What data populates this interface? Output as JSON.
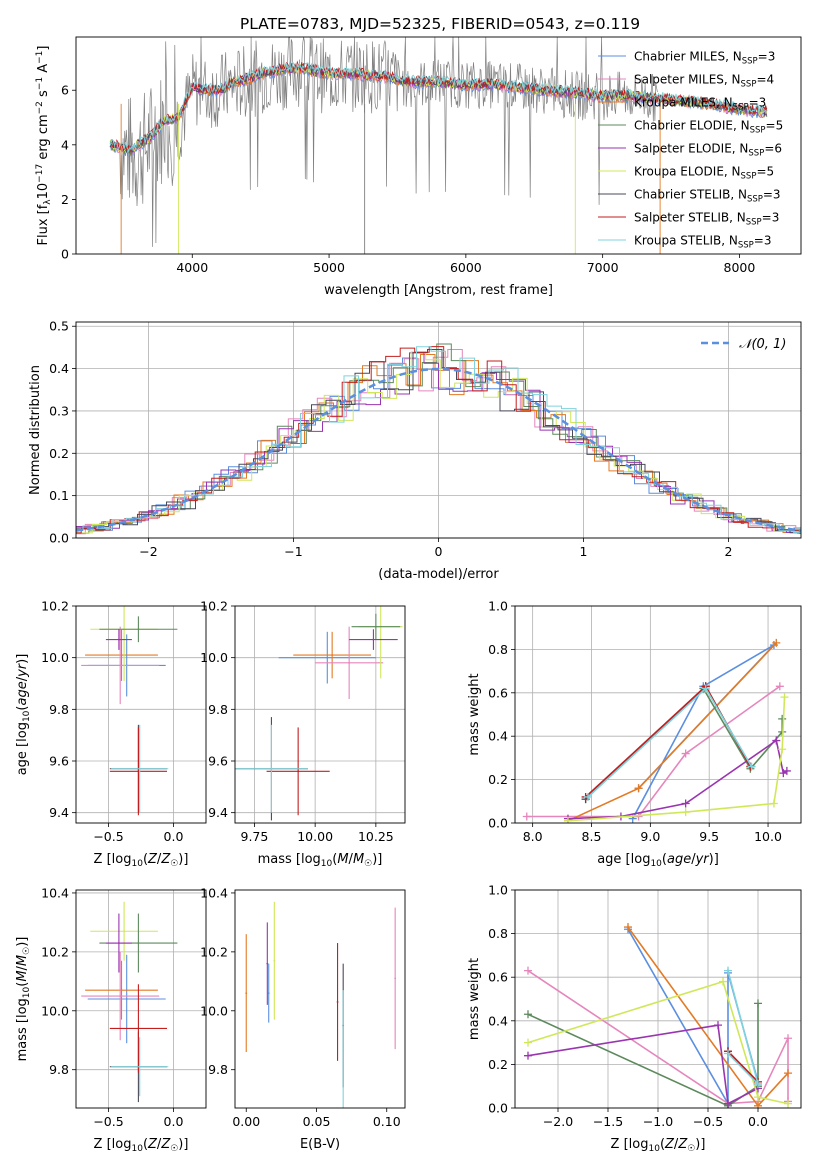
{
  "figure": {
    "title": "PLATE=0783, MJD=52325, FIBERID=0543, z=0.119"
  },
  "chart_data": [
    {
      "id": "spectrum",
      "type": "line",
      "xlabel": "wavelength [Angstrom, rest frame]",
      "ylabel": "Flux [f_λ 10^-17 erg cm^-2 s^-1 A^-1]",
      "xlim": [
        3150,
        8450
      ],
      "ylim": [
        0,
        7.95
      ],
      "xticks": [
        4000,
        5000,
        6000,
        7000,
        8000
      ],
      "yticks": [
        0,
        2,
        4,
        6
      ],
      "grid": false,
      "legend": "top-right",
      "observed": {
        "color": "#808080",
        "x": [
          3470,
          3600,
          3700,
          3800,
          3900,
          4000,
          4100,
          4200,
          4300,
          4400,
          4500,
          4600,
          4700,
          4800,
          4900,
          5000,
          5200,
          5400,
          5600,
          5800,
          6000,
          6200,
          6400,
          6600,
          6800,
          7000,
          7200,
          7400
        ],
        "y": [
          3.9,
          3.6,
          4.2,
          4.8,
          4.6,
          6.0,
          5.9,
          6.0,
          6.2,
          6.3,
          6.5,
          6.6,
          6.7,
          6.8,
          6.6,
          6.5,
          6.6,
          6.5,
          6.2,
          6.3,
          6.2,
          6.2,
          6.1,
          6.0,
          5.8,
          5.8,
          5.8,
          5.7
        ]
      },
      "model_x": [
        3400,
        3550,
        3700,
        3800,
        3900,
        4000,
        4100,
        4200,
        4300,
        4400,
        4500,
        4600,
        4700,
        4800,
        4900,
        5000,
        5200,
        5400,
        5600,
        5800,
        6000,
        6200,
        6400,
        6600,
        6800,
        7000,
        7200,
        7400,
        7600,
        7800,
        8000,
        8200
      ],
      "model_y": [
        4.0,
        3.8,
        4.3,
        4.9,
        5.0,
        6.1,
        6.0,
        6.0,
        6.3,
        6.4,
        6.6,
        6.7,
        6.8,
        6.8,
        6.7,
        6.6,
        6.6,
        6.5,
        6.3,
        6.3,
        6.2,
        6.2,
        6.1,
        6.0,
        5.9,
        5.8,
        5.8,
        5.7,
        5.6,
        5.5,
        5.3,
        5.2
      ],
      "series": [
        {
          "name": "Chabrier MILES, N_SSP=3",
          "label_main": "Chabrier MILES, N",
          "label_sub": "SSP",
          "label_end": "=3",
          "color": "#5b8fe0"
        },
        {
          "name": "Salpeter MILES, N_SSP=4",
          "label_main": "Salpeter MILES, N",
          "label_sub": "SSP",
          "label_end": "=4",
          "color": "#e586bc"
        },
        {
          "name": "Kroupa MILES, N_SSP=3",
          "label_main": "Kroupa MILES, N",
          "label_sub": "SSP",
          "label_end": "=3",
          "color": "#e37a24"
        },
        {
          "name": "Chabrier ELODIE, N_SSP=5",
          "label_main": "Chabrier ELODIE, N",
          "label_sub": "SSP",
          "label_end": "=5",
          "color": "#5d8a5d"
        },
        {
          "name": "Salpeter ELODIE, N_SSP=6",
          "label_main": "Salpeter ELODIE, N",
          "label_sub": "SSP",
          "label_end": "=6",
          "color": "#9a35b0"
        },
        {
          "name": "Kroupa ELODIE, N_SSP=5",
          "label_main": "Kroupa ELODIE, N",
          "label_sub": "SSP",
          "label_end": "=5",
          "color": "#cfe85a"
        },
        {
          "name": "Chabrier STELIB, N_SSP=3",
          "label_main": "Chabrier STELIB, N",
          "label_sub": "SSP",
          "label_end": "=3",
          "color": "#4a4a5a"
        },
        {
          "name": "Salpeter STELIB, N_SSP=3",
          "label_main": "Salpeter STELIB, N",
          "label_sub": "SSP",
          "label_end": "=3",
          "color": "#c41e1e"
        },
        {
          "name": "Kroupa STELIB, N_SSP=3",
          "label_main": "Kroupa STELIB, N",
          "label_sub": "SSP",
          "label_end": "=3",
          "color": "#7ed3dc"
        }
      ]
    },
    {
      "id": "residuals",
      "type": "line",
      "xlabel": "(data-model)/error",
      "ylabel": "Normed distribution",
      "xlim": [
        -2.5,
        2.5
      ],
      "ylim": [
        0,
        0.51
      ],
      "xticks": [
        -2,
        -1,
        0,
        1,
        2
      ],
      "xticklabels": [
        "−2",
        "−1",
        "0",
        "1",
        "2"
      ],
      "yticks": [
        0,
        0.1,
        0.2,
        0.3,
        0.4,
        0.5
      ],
      "yticklabels": [
        "0.0",
        "0.1",
        "0.2",
        "0.3",
        "0.4",
        "0.5"
      ],
      "grid": true,
      "legend": "top-right",
      "normal_curve": {
        "name": "N(0,1)",
        "label": "𝒩(0, 1)",
        "color": "#5b8fe0"
      }
    },
    {
      "id": "age-vs-Z",
      "type": "scatter",
      "xlabel": "Z [log10(Z/Z☉)]",
      "ylabel": "age [log10(age/yr)]",
      "xlim": [
        -0.75,
        0.25
      ],
      "ylim": [
        9.36,
        10.2
      ],
      "xticks": [
        -0.5,
        0.0
      ],
      "xticklabels": [
        "−0.5",
        "0.0"
      ],
      "yticks": [
        9.4,
        9.6,
        9.8,
        10.0,
        10.2
      ],
      "yticklabels": [
        "9.4",
        "9.6",
        "9.8",
        "10.0",
        "10.2"
      ],
      "grid": true,
      "points": [
        {
          "x": -0.36,
          "y": 9.97,
          "xerr": 0.3,
          "yerr": 0.12,
          "color": "#5b8fe0"
        },
        {
          "x": -0.4,
          "y": 10.01,
          "xerr": 0.28,
          "yerr": 0.1,
          "color": "#e37a24"
        },
        {
          "x": -0.41,
          "y": 9.97,
          "xerr": 0.3,
          "yerr": 0.15,
          "color": "#e586bc"
        },
        {
          "x": -0.38,
          "y": 10.11,
          "xerr": 0.26,
          "yerr": 0.2,
          "color": "#cfe85a"
        },
        {
          "x": -0.27,
          "y": 10.11,
          "xerr": 0.3,
          "yerr": 0.05,
          "color": "#5d8a5d"
        },
        {
          "x": -0.42,
          "y": 10.07,
          "xerr": 0.1,
          "yerr": 0.04,
          "color": "#9a35b0"
        },
        {
          "x": -0.27,
          "y": 9.57,
          "xerr": 0.22,
          "yerr": 0.17,
          "color": "#4a4a5a"
        },
        {
          "x": -0.27,
          "y": 9.56,
          "xerr": 0.22,
          "yerr": 0.17,
          "color": "#c41e1e"
        },
        {
          "x": -0.26,
          "y": 9.57,
          "xerr": 0.22,
          "yerr": 0.17,
          "color": "#7ed3dc"
        }
      ]
    },
    {
      "id": "age-vs-mass",
      "type": "scatter",
      "xlabel": "mass [log10(M/M☉)]",
      "ylabel": "",
      "xlim": [
        9.67,
        10.37
      ],
      "ylim": [
        9.36,
        10.2
      ],
      "xticks": [
        9.75,
        10.0,
        10.25
      ],
      "xticklabels": [
        "9.75",
        "10.00",
        "10.25"
      ],
      "yticks": [
        9.4,
        9.6,
        9.8,
        10.0,
        10.2
      ],
      "yticklabels": [
        "9.4",
        "9.6",
        "9.8",
        "10.0",
        "10.2"
      ],
      "grid": true,
      "points": [
        {
          "x": 10.05,
          "y": 10.0,
          "xerr": 0.2,
          "yerr": 0.1,
          "color": "#5b8fe0"
        },
        {
          "x": 10.07,
          "y": 10.01,
          "xerr": 0.16,
          "yerr": 0.09,
          "color": "#e37a24"
        },
        {
          "x": 10.14,
          "y": 9.98,
          "xerr": 0.14,
          "yerr": 0.14,
          "color": "#e586bc"
        },
        {
          "x": 10.27,
          "y": 10.12,
          "xerr": 0.09,
          "yerr": 0.2,
          "color": "#cfe85a"
        },
        {
          "x": 10.25,
          "y": 10.12,
          "xerr": 0.1,
          "yerr": 0.05,
          "color": "#5d8a5d"
        },
        {
          "x": 10.24,
          "y": 10.07,
          "xerr": 0.1,
          "yerr": 0.04,
          "color": "#9a35b0"
        },
        {
          "x": 9.82,
          "y": 9.57,
          "xerr": 0.15,
          "yerr": 0.2,
          "color": "#4a4a5a"
        },
        {
          "x": 9.93,
          "y": 9.56,
          "xerr": 0.13,
          "yerr": 0.17,
          "color": "#c41e1e"
        },
        {
          "x": 9.82,
          "y": 9.57,
          "xerr": 0.15,
          "yerr": 0.17,
          "color": "#7ed3dc"
        }
      ]
    },
    {
      "id": "weight-vs-age",
      "type": "line",
      "xlabel": "age [log10(age/yr)]",
      "ylabel": "mass weight",
      "xlim": [
        7.85,
        10.28
      ],
      "ylim": [
        0,
        1.0
      ],
      "xticks": [
        8.0,
        8.5,
        9.0,
        9.5,
        10.0
      ],
      "xticklabels": [
        "8.0",
        "8.5",
        "9.0",
        "9.5",
        "10.0"
      ],
      "yticks": [
        0,
        0.2,
        0.4,
        0.6,
        0.8,
        1.0
      ],
      "yticklabels": [
        "0.0",
        "0.2",
        "0.4",
        "0.6",
        "0.8",
        "1.0"
      ],
      "grid": true,
      "series": [
        {
          "color": "#5b8fe0",
          "x": [
            8.85,
            9.45,
            10.05,
            8.9
          ],
          "y": [
            0.02,
            0.63,
            0.82,
            0.16
          ]
        },
        {
          "color": "#e586bc",
          "x": [
            7.95,
            8.9,
            9.3,
            10.1
          ],
          "y": [
            0.03,
            0.03,
            0.32,
            0.63
          ]
        },
        {
          "color": "#e37a24",
          "x": [
            8.3,
            8.9,
            10.07
          ],
          "y": [
            0.01,
            0.16,
            0.83
          ]
        },
        {
          "color": "#5d8a5d",
          "x": [
            8.45,
            9.45,
            9.85,
            10.12,
            10.12
          ],
          "y": [
            0.11,
            0.62,
            0.25,
            0.42,
            0.48
          ]
        },
        {
          "color": "#9a35b0",
          "x": [
            8.3,
            8.75,
            9.3,
            10.07,
            10.13,
            10.16
          ],
          "y": [
            0.02,
            0.03,
            0.09,
            0.38,
            0.23,
            0.24
          ]
        },
        {
          "color": "#cfe85a",
          "x": [
            8.3,
            9.3,
            10.05,
            10.12,
            10.14
          ],
          "y": [
            0.01,
            0.05,
            0.09,
            0.34,
            0.58
          ]
        },
        {
          "color": "#4a4a5a",
          "x": [
            8.45,
            9.47,
            9.85
          ],
          "y": [
            0.11,
            0.63,
            0.26
          ]
        },
        {
          "color": "#c41e1e",
          "x": [
            8.45,
            9.47,
            9.85
          ],
          "y": [
            0.12,
            0.63,
            0.26
          ]
        },
        {
          "color": "#7ed3dc",
          "x": [
            8.47,
            9.47,
            9.86
          ],
          "y": [
            0.12,
            0.62,
            0.26
          ]
        }
      ]
    },
    {
      "id": "mass-vs-Z",
      "type": "scatter",
      "xlabel": "Z [log10(Z/Z☉)]",
      "ylabel": "mass [log10(M/M☉)]",
      "xlim": [
        -0.75,
        0.25
      ],
      "ylim": [
        9.67,
        10.41
      ],
      "xticks": [
        -0.5,
        0.0
      ],
      "xticklabels": [
        "−0.5",
        "0.0"
      ],
      "yticks": [
        9.8,
        10.0,
        10.2,
        10.4
      ],
      "yticklabels": [
        "9.8",
        "10.0",
        "10.2",
        "10.4"
      ],
      "grid": true,
      "points": [
        {
          "x": -0.36,
          "y": 10.04,
          "xerr": 0.3,
          "yerr": 0.15,
          "color": "#5b8fe0"
        },
        {
          "x": -0.4,
          "y": 10.07,
          "xerr": 0.28,
          "yerr": 0.1,
          "color": "#e37a24"
        },
        {
          "x": -0.41,
          "y": 10.05,
          "xerr": 0.3,
          "yerr": 0.15,
          "color": "#e586bc"
        },
        {
          "x": -0.38,
          "y": 10.27,
          "xerr": 0.26,
          "yerr": 0.1,
          "color": "#cfe85a"
        },
        {
          "x": -0.27,
          "y": 10.23,
          "xerr": 0.3,
          "yerr": 0.1,
          "color": "#5d8a5d"
        },
        {
          "x": -0.42,
          "y": 10.23,
          "xerr": 0.1,
          "yerr": 0.1,
          "color": "#9a35b0"
        },
        {
          "x": -0.27,
          "y": 9.81,
          "xerr": 0.22,
          "yerr": 0.12,
          "color": "#4a4a5a"
        },
        {
          "x": -0.27,
          "y": 9.94,
          "xerr": 0.22,
          "yerr": 0.15,
          "color": "#c41e1e"
        },
        {
          "x": -0.26,
          "y": 9.81,
          "xerr": 0.22,
          "yerr": 0.1,
          "color": "#7ed3dc"
        }
      ]
    },
    {
      "id": "mass-vs-ebv",
      "type": "scatter",
      "xlabel": "E(B-V)",
      "ylabel": "",
      "xlim": [
        -0.008,
        0.113
      ],
      "ylim": [
        9.67,
        10.41
      ],
      "xticks": [
        0.0,
        0.05,
        0.1
      ],
      "xticklabels": [
        "0.00",
        "0.05",
        "0.10"
      ],
      "yticks": [
        9.8,
        10.0,
        10.2,
        10.4
      ],
      "yticklabels": [
        "9.8",
        "10.0",
        "10.2",
        "10.4"
      ],
      "grid": false,
      "points": [
        {
          "x": 0.0,
          "y": 10.06,
          "xerr": 0,
          "yerr": 0.2,
          "color": "#e37a24"
        },
        {
          "x": 0.015,
          "y": 10.16,
          "xerr": 0,
          "yerr": 0.14,
          "color": "#9a35b0"
        },
        {
          "x": 0.016,
          "y": 10.06,
          "xerr": 0,
          "yerr": 0.1,
          "color": "#5b8fe0"
        },
        {
          "x": 0.02,
          "y": 10.17,
          "xerr": 0,
          "yerr": 0.2,
          "color": "#cfe85a"
        },
        {
          "x": 0.065,
          "y": 10.03,
          "xerr": 0,
          "yerr": 0.2,
          "color": "#c41e1e"
        },
        {
          "x": 0.069,
          "y": 9.95,
          "xerr": 0,
          "yerr": 0.21,
          "color": "#4a4a5a"
        },
        {
          "x": 0.069,
          "y": 9.87,
          "xerr": 0,
          "yerr": 0.2,
          "color": "#7ed3dc"
        },
        {
          "x": 0.106,
          "y": 10.11,
          "xerr": 0,
          "yerr": 0.24,
          "color": "#e586bc"
        }
      ]
    },
    {
      "id": "weight-vs-Z",
      "type": "line",
      "xlabel": "Z [log10(Z/Z☉)]",
      "ylabel": "mass weight",
      "xlim": [
        -2.43,
        0.43
      ],
      "ylim": [
        0,
        1.0
      ],
      "xticks": [
        -2.0,
        -1.5,
        -1.0,
        -0.5,
        0.0
      ],
      "xticklabels": [
        "−2.0",
        "−1.5",
        "−1.0",
        "−0.5",
        "0.0"
      ],
      "yticks": [
        0,
        0.2,
        0.4,
        0.6,
        0.8,
        1.0
      ],
      "yticklabels": [
        "0.0",
        "0.2",
        "0.4",
        "0.6",
        "0.8",
        "1.0"
      ],
      "grid": true,
      "series": [
        {
          "color": "#5b8fe0",
          "x": [
            -1.3,
            -0.3,
            -0.3,
            0.0
          ],
          "y": [
            0.82,
            0.02,
            0.62,
            0.12
          ]
        },
        {
          "color": "#e586bc",
          "x": [
            -2.3,
            -0.3,
            0.0,
            0.3,
            0.3
          ],
          "y": [
            0.63,
            0.02,
            0.03,
            0.32,
            0.03
          ]
        },
        {
          "color": "#e37a24",
          "x": [
            -1.3,
            0.0,
            0.3
          ],
          "y": [
            0.83,
            0.01,
            0.16
          ]
        },
        {
          "color": "#5d8a5d",
          "x": [
            -2.3,
            -0.3,
            0.0,
            0.0
          ],
          "y": [
            0.43,
            0.01,
            0.1,
            0.48
          ]
        },
        {
          "color": "#9a35b0",
          "x": [
            -2.3,
            -0.4,
            -0.3,
            0.0
          ],
          "y": [
            0.24,
            0.38,
            0.02,
            0.09
          ]
        },
        {
          "color": "#cfe85a",
          "x": [
            -2.3,
            -0.35,
            0.0,
            0.3
          ],
          "y": [
            0.3,
            0.58,
            0.05,
            0.02
          ]
        },
        {
          "color": "#4a4a5a",
          "x": [
            -0.3,
            0.0
          ],
          "y": [
            0.26,
            0.11
          ]
        },
        {
          "color": "#c41e1e",
          "x": [
            -0.3,
            0.0
          ],
          "y": [
            0.26,
            0.12
          ]
        },
        {
          "color": "#7ed3dc",
          "x": [
            -0.3,
            0.0,
            -0.3
          ],
          "y": [
            0.25,
            0.11,
            0.63
          ]
        }
      ]
    }
  ]
}
